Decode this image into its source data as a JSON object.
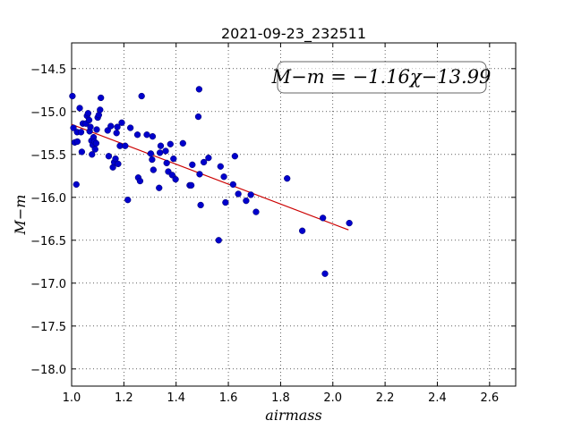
{
  "chart_data": {
    "type": "scatter",
    "title": "2021-09-23_232511",
    "xlabel": "airmass",
    "ylabel": "M−m",
    "xlim": [
      1.0,
      2.7
    ],
    "ylim": [
      -18.2,
      -14.2
    ],
    "x_ticks": [
      "1.0",
      "1.2",
      "1.4",
      "1.6",
      "1.8",
      "2.0",
      "2.2",
      "2.4",
      "2.6"
    ],
    "y_ticks": [
      "−14.5",
      "−15.0",
      "−15.5",
      "−16.0",
      "−16.5",
      "−17.0",
      "−17.5",
      "−18.0"
    ],
    "grid": true,
    "point_color": "#0000cc",
    "fit_color": "#cc0000",
    "fit_annotation": "M−m = −1.16χ−13.99",
    "fit": {
      "slope": -1.16,
      "intercept": -13.99,
      "x_range": [
        1.0,
        2.06
      ]
    },
    "points": [
      {
        "x": 1.003,
        "y": -14.82
      },
      {
        "x": 1.007,
        "y": -15.19
      },
      {
        "x": 1.012,
        "y": -15.36
      },
      {
        "x": 1.018,
        "y": -15.85
      },
      {
        "x": 1.021,
        "y": -15.24
      },
      {
        "x": 1.022,
        "y": -15.35
      },
      {
        "x": 1.031,
        "y": -14.96
      },
      {
        "x": 1.036,
        "y": -15.24
      },
      {
        "x": 1.039,
        "y": -15.47
      },
      {
        "x": 1.043,
        "y": -15.14
      },
      {
        "x": 1.055,
        "y": -15.14
      },
      {
        "x": 1.059,
        "y": -15.05
      },
      {
        "x": 1.063,
        "y": -15.02
      },
      {
        "x": 1.067,
        "y": -15.1
      },
      {
        "x": 1.069,
        "y": -15.23
      },
      {
        "x": 1.072,
        "y": -15.18
      },
      {
        "x": 1.076,
        "y": -15.34
      },
      {
        "x": 1.078,
        "y": -15.5
      },
      {
        "x": 1.081,
        "y": -15.39
      },
      {
        "x": 1.084,
        "y": -15.3
      },
      {
        "x": 1.087,
        "y": -15.35
      },
      {
        "x": 1.09,
        "y": -15.44
      },
      {
        "x": 1.094,
        "y": -15.37
      },
      {
        "x": 1.096,
        "y": -15.21
      },
      {
        "x": 1.1,
        "y": -15.07
      },
      {
        "x": 1.104,
        "y": -15.04
      },
      {
        "x": 1.109,
        "y": -14.98
      },
      {
        "x": 1.112,
        "y": -14.84
      },
      {
        "x": 1.138,
        "y": -15.22
      },
      {
        "x": 1.142,
        "y": -15.52
      },
      {
        "x": 1.15,
        "y": -15.17
      },
      {
        "x": 1.158,
        "y": -15.65
      },
      {
        "x": 1.163,
        "y": -15.59
      },
      {
        "x": 1.168,
        "y": -15.55
      },
      {
        "x": 1.172,
        "y": -15.25
      },
      {
        "x": 1.175,
        "y": -15.18
      },
      {
        "x": 1.178,
        "y": -15.61
      },
      {
        "x": 1.185,
        "y": -15.4
      },
      {
        "x": 1.192,
        "y": -15.13
      },
      {
        "x": 1.205,
        "y": -15.4
      },
      {
        "x": 1.215,
        "y": -16.03
      },
      {
        "x": 1.225,
        "y": -15.19
      },
      {
        "x": 1.252,
        "y": -15.27
      },
      {
        "x": 1.255,
        "y": -15.77
      },
      {
        "x": 1.262,
        "y": -15.81
      },
      {
        "x": 1.268,
        "y": -14.82
      },
      {
        "x": 1.288,
        "y": -15.27
      },
      {
        "x": 1.303,
        "y": -15.49
      },
      {
        "x": 1.308,
        "y": -15.56
      },
      {
        "x": 1.31,
        "y": -15.29
      },
      {
        "x": 1.313,
        "y": -15.68
      },
      {
        "x": 1.335,
        "y": -15.89
      },
      {
        "x": 1.338,
        "y": -15.48
      },
      {
        "x": 1.341,
        "y": -15.4
      },
      {
        "x": 1.36,
        "y": -15.46
      },
      {
        "x": 1.364,
        "y": -15.6
      },
      {
        "x": 1.37,
        "y": -15.7
      },
      {
        "x": 1.378,
        "y": -15.38
      },
      {
        "x": 1.385,
        "y": -15.74
      },
      {
        "x": 1.39,
        "y": -15.55
      },
      {
        "x": 1.398,
        "y": -15.79
      },
      {
        "x": 1.426,
        "y": -15.37
      },
      {
        "x": 1.452,
        "y": -15.86
      },
      {
        "x": 1.458,
        "y": -15.86
      },
      {
        "x": 1.462,
        "y": -15.62
      },
      {
        "x": 1.485,
        "y": -15.06
      },
      {
        "x": 1.488,
        "y": -14.74
      },
      {
        "x": 1.49,
        "y": -15.73
      },
      {
        "x": 1.494,
        "y": -16.09
      },
      {
        "x": 1.506,
        "y": -15.59
      },
      {
        "x": 1.524,
        "y": -15.54
      },
      {
        "x": 1.563,
        "y": -16.5
      },
      {
        "x": 1.57,
        "y": -15.64
      },
      {
        "x": 1.583,
        "y": -15.76
      },
      {
        "x": 1.589,
        "y": -16.06
      },
      {
        "x": 1.618,
        "y": -15.85
      },
      {
        "x": 1.625,
        "y": -15.52
      },
      {
        "x": 1.638,
        "y": -15.96
      },
      {
        "x": 1.668,
        "y": -16.04
      },
      {
        "x": 1.686,
        "y": -15.97
      },
      {
        "x": 1.706,
        "y": -16.17
      },
      {
        "x": 1.825,
        "y": -15.78
      },
      {
        "x": 1.883,
        "y": -16.39
      },
      {
        "x": 1.962,
        "y": -16.24
      },
      {
        "x": 1.97,
        "y": -16.89
      },
      {
        "x": 2.063,
        "y": -16.3
      }
    ]
  }
}
